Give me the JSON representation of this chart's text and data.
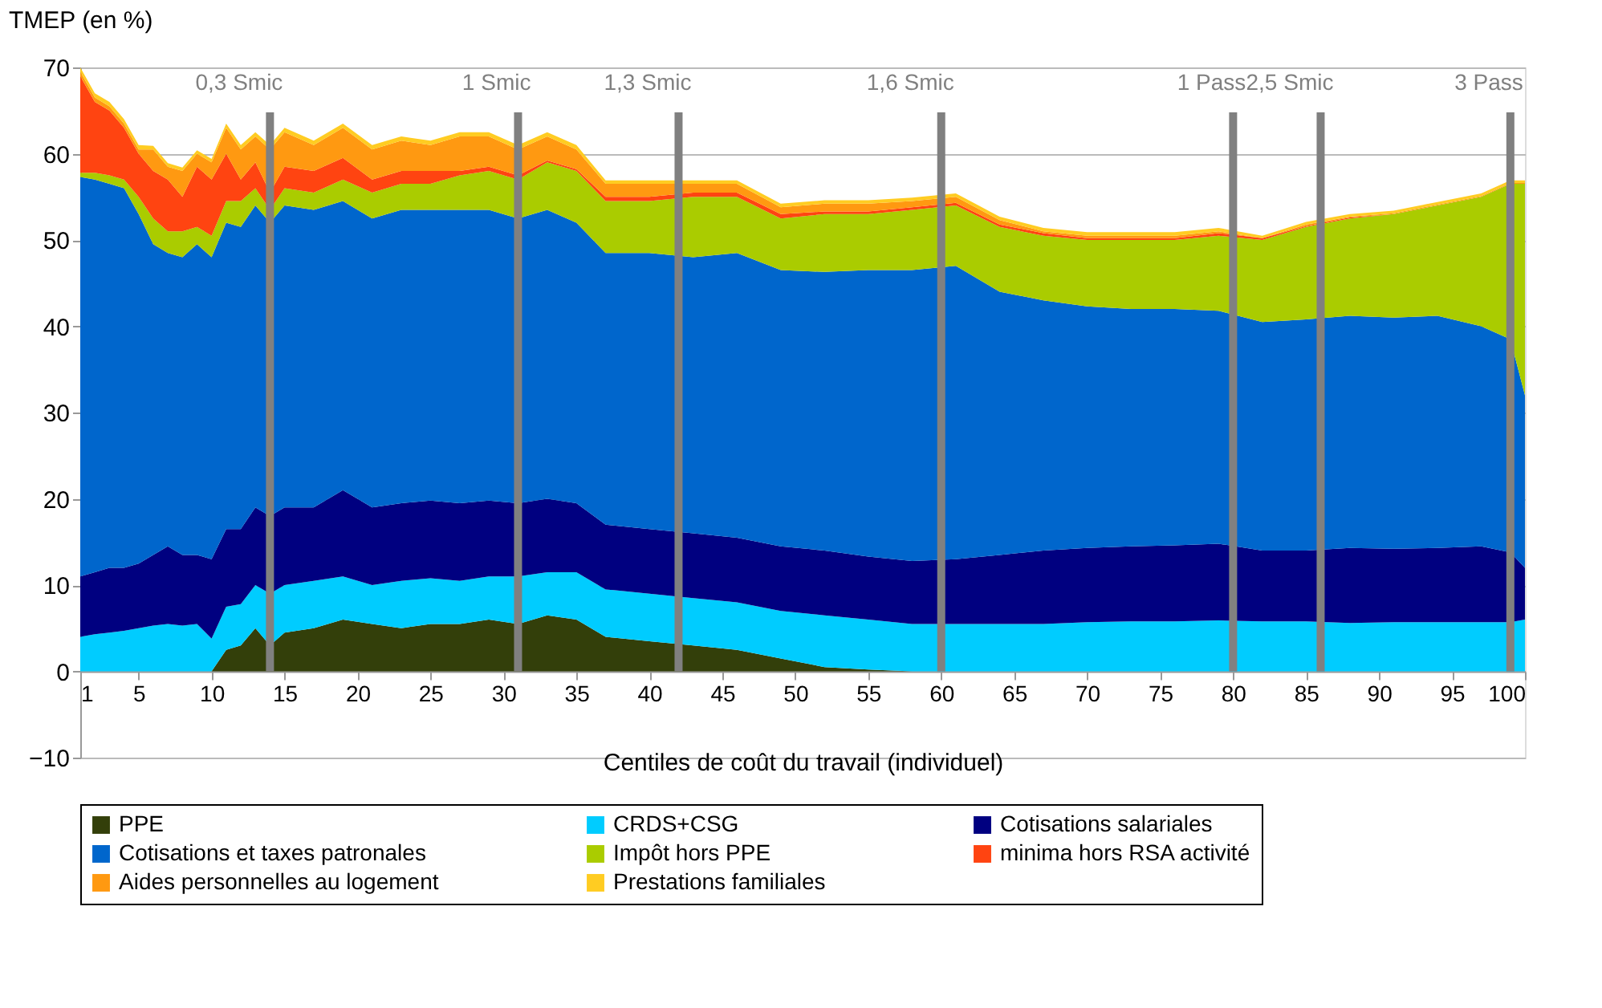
{
  "chart_data": {
    "type": "area",
    "stacked": true,
    "ylabel": "TMEP (en %)",
    "xlabel": "Centiles de coût du travail (individuel)",
    "x": [
      1,
      2,
      3,
      4,
      5,
      6,
      7,
      8,
      9,
      10,
      11,
      12,
      13,
      14,
      15,
      17,
      19,
      21,
      23,
      25,
      27,
      29,
      31,
      33,
      35,
      37,
      40,
      43,
      46,
      49,
      52,
      55,
      58,
      61,
      64,
      67,
      70,
      73,
      76,
      79,
      82,
      85,
      88,
      91,
      94,
      97,
      99,
      100
    ],
    "xlim": [
      1,
      100
    ],
    "xticks": [
      1,
      5,
      10,
      15,
      20,
      25,
      30,
      35,
      40,
      45,
      50,
      55,
      60,
      65,
      70,
      75,
      80,
      85,
      90,
      95,
      100
    ],
    "ylim": [
      -10,
      70
    ],
    "yticks": [
      -10,
      0,
      10,
      20,
      30,
      40,
      50,
      60,
      70
    ],
    "grid": "y",
    "legend": "bottom",
    "series": [
      {
        "name": "PPE",
        "color": "#333f0a",
        "values": [
          0,
          0,
          0,
          0,
          0,
          0,
          0,
          0,
          0,
          0,
          2.5,
          3,
          5,
          3,
          4.5,
          5,
          6,
          5.5,
          5,
          5.5,
          5.5,
          6,
          5.5,
          6.5,
          6,
          4,
          3.5,
          3,
          2.5,
          1.5,
          0.5,
          0.2,
          0,
          0,
          0,
          0,
          0,
          0,
          0,
          0,
          0,
          0,
          0,
          0,
          0,
          0,
          0,
          0
        ]
      },
      {
        "name": "CRDS+CSG",
        "color": "#00ccff",
        "values": [
          4,
          4.3,
          4.5,
          4.7,
          5,
          5.3,
          5.5,
          5.3,
          5.5,
          3.8,
          5,
          4.8,
          5,
          6,
          5.5,
          5.5,
          5,
          4.5,
          5.5,
          5.3,
          5,
          5,
          5.5,
          5,
          5.5,
          5.5,
          5.5,
          5.5,
          5.5,
          5.5,
          6,
          5.8,
          5.5,
          5.5,
          5.5,
          5.5,
          5.7,
          5.8,
          5.8,
          5.9,
          5.8,
          5.8,
          5.6,
          5.7,
          5.7,
          5.7,
          5.7,
          6
        ]
      },
      {
        "name": "Cotisations salariales",
        "color": "#000080",
        "values": [
          7,
          7.2,
          7.5,
          7.3,
          7.5,
          8.2,
          9,
          8.2,
          8,
          9.2,
          9,
          8.7,
          9,
          9,
          9,
          8.5,
          10,
          9,
          9,
          9,
          9,
          8.8,
          8.5,
          8.5,
          8,
          7.5,
          7.5,
          7.5,
          7.5,
          7.5,
          7.5,
          7.3,
          7.3,
          7.5,
          8,
          8.5,
          8.6,
          8.7,
          8.8,
          8.9,
          8.2,
          8.2,
          8.7,
          8.5,
          8.6,
          8.8,
          8.1,
          6
        ]
      },
      {
        "name": "Cotisations et taxes patronales",
        "color": "#0066cc",
        "values": [
          46.3,
          45.5,
          44.5,
          44,
          40.5,
          36,
          34,
          34.5,
          36,
          35,
          35.5,
          35,
          35,
          34,
          35,
          34.5,
          33.5,
          33.5,
          34,
          33.7,
          34,
          33.7,
          33,
          33.5,
          32.5,
          31.5,
          32,
          32,
          33,
          32,
          32.3,
          33.2,
          33.7,
          34,
          30.5,
          29,
          28,
          27.5,
          27.4,
          27,
          26.5,
          26.8,
          26.9,
          26.8,
          26.9,
          25.5,
          24.7,
          20
        ]
      },
      {
        "name": "Impôt hors PPE",
        "color": "#aacc00",
        "values": [
          0.5,
          0.8,
          1,
          1,
          2,
          3,
          2.5,
          3,
          2,
          2.5,
          2.5,
          3,
          2,
          1.5,
          2,
          2,
          2.5,
          3,
          3,
          3,
          4,
          4.5,
          4.5,
          5.5,
          6,
          6,
          6,
          7,
          6.5,
          6,
          6.7,
          6.5,
          7,
          7,
          7.5,
          7.5,
          7.7,
          8,
          8,
          8.7,
          9.5,
          10.7,
          11.3,
          12,
          12.8,
          15,
          18,
          24.5
        ]
      },
      {
        "name": "minima hors RSA activité",
        "color": "#ff4411",
        "values": [
          11.2,
          8.2,
          7.5,
          6,
          5,
          5.5,
          6,
          4,
          7,
          6.5,
          5.5,
          2.5,
          3,
          2,
          2.5,
          2.5,
          2.5,
          1.5,
          1.5,
          1.5,
          0.5,
          0.5,
          0.5,
          0.2,
          0.2,
          0.5,
          0.5,
          0.5,
          0.5,
          0.5,
          0.3,
          0.3,
          0.3,
          0.3,
          0.3,
          0.3,
          0.2,
          0.2,
          0.2,
          0.3,
          0.2,
          0.1,
          0.1,
          0,
          0,
          0,
          0,
          0
        ]
      },
      {
        "name": "Aides personnelles au logement",
        "color": "#ff9911",
        "values": [
          0.5,
          0.5,
          0.5,
          0.5,
          0.5,
          2.5,
          1.5,
          3,
          1.5,
          2,
          3,
          3.5,
          3,
          5,
          4,
          3,
          3.5,
          3.5,
          3.5,
          3,
          4,
          3.5,
          3,
          2.8,
          2.3,
          1.5,
          1.5,
          1,
          1,
          0.8,
          0.9,
          0.9,
          0.7,
          0.7,
          0.5,
          0.2,
          0.3,
          0.3,
          0.3,
          0.2,
          0,
          0.2,
          0.1,
          0.1,
          0.1,
          0.1,
          0.1,
          0.1
        ]
      },
      {
        "name": "Prestations familiales",
        "color": "#ffcc22",
        "values": [
          0.5,
          0.5,
          0.5,
          0.5,
          0.5,
          0.4,
          0.4,
          0.4,
          0.4,
          0.4,
          0.5,
          0.5,
          0.5,
          0.5,
          0.5,
          0.5,
          0.5,
          0.5,
          0.5,
          0.5,
          0.5,
          0.5,
          0.5,
          0.5,
          0.5,
          0.4,
          0.4,
          0.4,
          0.4,
          0.4,
          0.4,
          0.4,
          0.4,
          0.4,
          0.4,
          0.4,
          0.4,
          0.4,
          0.4,
          0.4,
          0.3,
          0.3,
          0.3,
          0.3,
          0.3,
          0.3,
          0.3,
          0.3
        ]
      }
    ],
    "ref_lines": [
      {
        "axis": "x",
        "value": 14,
        "label": "0,3 Smic",
        "color": "#808080"
      },
      {
        "axis": "x",
        "value": 31,
        "label": "1 Smic",
        "color": "#808080"
      },
      {
        "axis": "x",
        "value": 42,
        "label": "1,3 Smic",
        "color": "#808080"
      },
      {
        "axis": "x",
        "value": 60,
        "label": "1,6 Smic",
        "color": "#808080"
      },
      {
        "axis": "x",
        "value": 80,
        "label": "1 Pass",
        "color": "#808080"
      },
      {
        "axis": "x",
        "value": 86,
        "label": "2,5 Smic",
        "color": "#808080"
      },
      {
        "axis": "x",
        "value": 99,
        "label": "3 Pass",
        "color": "#808080"
      }
    ]
  }
}
